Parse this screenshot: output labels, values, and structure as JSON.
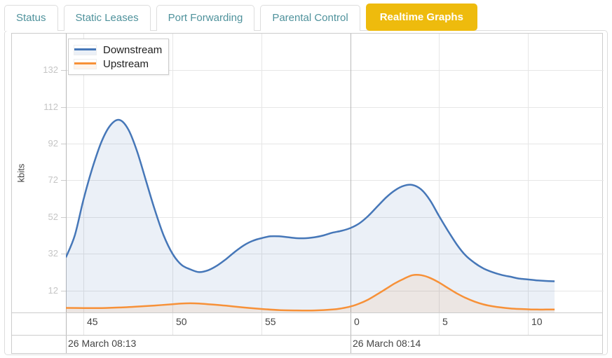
{
  "tabs": {
    "items": [
      {
        "label": "Status",
        "active": false
      },
      {
        "label": "Static Leases",
        "active": false
      },
      {
        "label": "Port Forwarding",
        "active": false
      },
      {
        "label": "Parental Control",
        "active": false
      },
      {
        "label": "Realtime Graphs",
        "active": true
      }
    ]
  },
  "colors": {
    "active_tab_bg": "#eebb0d",
    "active_tab_text": "#ffffff",
    "tab_text": "#4f929c",
    "grid": "#e6e6e6",
    "axis": "#cccccc",
    "section_line": "#b9b9b9",
    "ytick_text": "#c5c5c5",
    "xtick_text": "#444444"
  },
  "chart_data": {
    "type": "area",
    "ylabel": "kbits",
    "ylim": [
      0,
      152
    ],
    "y_ticks": [
      12,
      32,
      52,
      72,
      92,
      112,
      132
    ],
    "x_note": "x is minute of hour; values >= 60 are minutes of 08:14 (60 -> 0, 65 -> 5, 70 -> 10)",
    "x_range": [
      44,
      74.2
    ],
    "x_ticks": [
      {
        "x": 45,
        "label": "45"
      },
      {
        "x": 50,
        "label": "50"
      },
      {
        "x": 55,
        "label": "55"
      },
      {
        "x": 60,
        "label": "0"
      },
      {
        "x": 65,
        "label": "5"
      },
      {
        "x": 70,
        "label": "10"
      }
    ],
    "sections": [
      {
        "x": 44,
        "label": "26 March 08:13"
      },
      {
        "x": 60,
        "label": "26 March 08:14"
      }
    ],
    "legend_position": "top-left",
    "grid": true,
    "series": [
      {
        "name": "Downstream",
        "color": "#4677b8",
        "fill": "rgba(70,119,184,0.11)",
        "points": [
          [
            44,
            30
          ],
          [
            44.5,
            42
          ],
          [
            45,
            62
          ],
          [
            45.5,
            79
          ],
          [
            46,
            93
          ],
          [
            46.5,
            102
          ],
          [
            47,
            105
          ],
          [
            47.5,
            100
          ],
          [
            48,
            88
          ],
          [
            48.5,
            72
          ],
          [
            49,
            56
          ],
          [
            49.5,
            42
          ],
          [
            50,
            32
          ],
          [
            50.5,
            26
          ],
          [
            51,
            23.5
          ],
          [
            51.5,
            22
          ],
          [
            52,
            23
          ],
          [
            52.5,
            25.5
          ],
          [
            53,
            29
          ],
          [
            53.5,
            33
          ],
          [
            54,
            36.5
          ],
          [
            54.5,
            39
          ],
          [
            55,
            40.5
          ],
          [
            55.5,
            41.5
          ],
          [
            56,
            41.5
          ],
          [
            56.5,
            41
          ],
          [
            57,
            40.5
          ],
          [
            57.5,
            40.5
          ],
          [
            58,
            41
          ],
          [
            58.5,
            42
          ],
          [
            59,
            43.5
          ],
          [
            59.5,
            44.5
          ],
          [
            60,
            46
          ],
          [
            60.5,
            48.5
          ],
          [
            61,
            52.5
          ],
          [
            61.5,
            57.5
          ],
          [
            62,
            62.5
          ],
          [
            62.5,
            66.5
          ],
          [
            63,
            69
          ],
          [
            63.5,
            69.5
          ],
          [
            64,
            67
          ],
          [
            64.5,
            61
          ],
          [
            65,
            52.5
          ],
          [
            65.5,
            44.5
          ],
          [
            66,
            37
          ],
          [
            66.5,
            31
          ],
          [
            67,
            27
          ],
          [
            67.5,
            24
          ],
          [
            68,
            22
          ],
          [
            68.5,
            20.5
          ],
          [
            69,
            19.5
          ],
          [
            69.5,
            18.5
          ],
          [
            70,
            18
          ],
          [
            70.5,
            17.5
          ],
          [
            71,
            17.2
          ],
          [
            71.5,
            17
          ]
        ]
      },
      {
        "name": "Upstream",
        "color": "#f79138",
        "fill": "rgba(247,145,56,0.10)",
        "points": [
          [
            44,
            2.5
          ],
          [
            45,
            2.4
          ],
          [
            46,
            2.4
          ],
          [
            47,
            2.7
          ],
          [
            48,
            3.2
          ],
          [
            49,
            3.8
          ],
          [
            50,
            4.5
          ],
          [
            50.5,
            4.9
          ],
          [
            51,
            5
          ],
          [
            51.5,
            4.9
          ],
          [
            52,
            4.5
          ],
          [
            53,
            3.7
          ],
          [
            54,
            2.7
          ],
          [
            55,
            1.9
          ],
          [
            56,
            1.3
          ],
          [
            57,
            1.1
          ],
          [
            58,
            1.1
          ],
          [
            59,
            1.6
          ],
          [
            59.5,
            2.2
          ],
          [
            60,
            3.2
          ],
          [
            60.5,
            4.8
          ],
          [
            61,
            7
          ],
          [
            61.5,
            9.8
          ],
          [
            62,
            12.8
          ],
          [
            62.5,
            15.8
          ],
          [
            63,
            18.3
          ],
          [
            63.5,
            20.3
          ],
          [
            64,
            20.3
          ],
          [
            64.5,
            18.8
          ],
          [
            65,
            16.3
          ],
          [
            65.5,
            13.3
          ],
          [
            66,
            10.4
          ],
          [
            66.5,
            7.9
          ],
          [
            67,
            5.9
          ],
          [
            67.5,
            4.4
          ],
          [
            68,
            3.4
          ],
          [
            68.5,
            2.7
          ],
          [
            69,
            2.2
          ],
          [
            69.5,
            1.9
          ],
          [
            70,
            1.7
          ],
          [
            70.5,
            1.6
          ],
          [
            71,
            1.6
          ],
          [
            71.5,
            1.6
          ]
        ]
      }
    ]
  }
}
